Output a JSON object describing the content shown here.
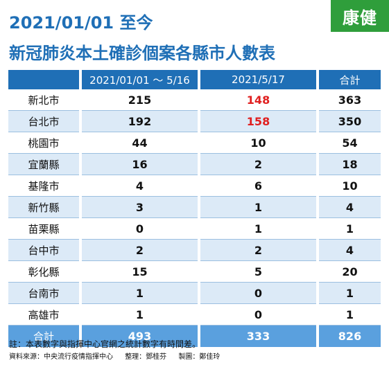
{
  "logo": "康健",
  "title_line1": "2021/01/01 至今",
  "title_line2": "新冠肺炎本土確診個案各縣市人數表",
  "table": {
    "headers": [
      "",
      "2021/01/01 ～ 5/16",
      "2021/5/17",
      "合計"
    ],
    "rows": [
      {
        "city": "新北市",
        "before": "215",
        "day": "148",
        "total": "363"
      },
      {
        "city": "台北市",
        "before": "192",
        "day": "158",
        "total": "350"
      },
      {
        "city": "桃園市",
        "before": "44",
        "day": "10",
        "total": "54"
      },
      {
        "city": "宜蘭縣",
        "before": "16",
        "day": "2",
        "total": "18"
      },
      {
        "city": "基隆市",
        "before": "4",
        "day": "6",
        "total": "10"
      },
      {
        "city": "新竹縣",
        "before": "3",
        "day": "1",
        "total": "4"
      },
      {
        "city": "苗栗縣",
        "before": "0",
        "day": "1",
        "total": "1"
      },
      {
        "city": "台中市",
        "before": "2",
        "day": "2",
        "total": "4"
      },
      {
        "city": "彰化縣",
        "before": "15",
        "day": "5",
        "total": "20"
      },
      {
        "city": "台南市",
        "before": "1",
        "day": "0",
        "total": "1"
      },
      {
        "city": "高雄市",
        "before": "1",
        "day": "0",
        "total": "1"
      }
    ],
    "footer": {
      "city": "合計",
      "before": "493",
      "day": "333",
      "total": "826"
    }
  },
  "note": "註：本表數字與指揮中心官網之統計數字有時間差。",
  "credits": {
    "source": "資料來源：中央流行疫情指揮中心",
    "editor": "整理：鄧桂芬",
    "maker": "製圖：鄭佳玲"
  },
  "colors": {
    "accent": "#1f6fb6",
    "highlight": "#e02020",
    "logo_bg": "#2f9e3b"
  }
}
